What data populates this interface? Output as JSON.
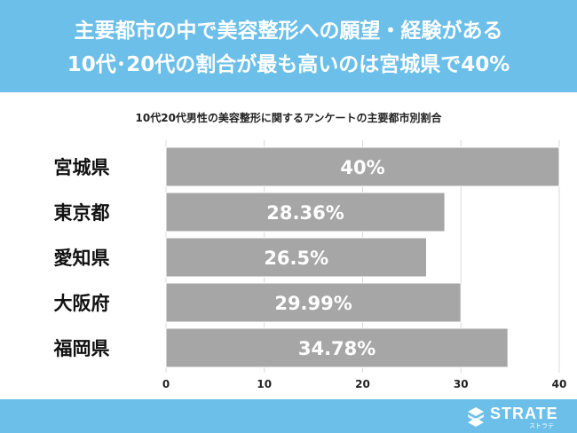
{
  "header": {
    "line1": "主要都市の中で美容整形への願望・経験がある",
    "line2": "10代･20代の割合が最も高いのは宮城県で40%"
  },
  "chart_data": {
    "type": "bar",
    "orientation": "horizontal",
    "title": "10代20代男性の美容整形に関するアンケートの主要都市別割合",
    "categories": [
      "宮城県",
      "東京都",
      "愛知県",
      "大阪府",
      "福岡県"
    ],
    "values": [
      40,
      28.36,
      26.5,
      29.99,
      34.78
    ],
    "value_labels": [
      "40%",
      "28.36%",
      "26.5%",
      "29.99%",
      "34.78%"
    ],
    "xlim": [
      0,
      40
    ],
    "xticks": [
      0,
      10,
      20,
      30,
      40
    ],
    "grid": true,
    "bar_color": "#a6a6a6",
    "grid_color": "#d9d9d9"
  },
  "footer": {
    "brand": "STRATE",
    "brand_sub": "ストラテ",
    "color": "#6cbfe8"
  }
}
